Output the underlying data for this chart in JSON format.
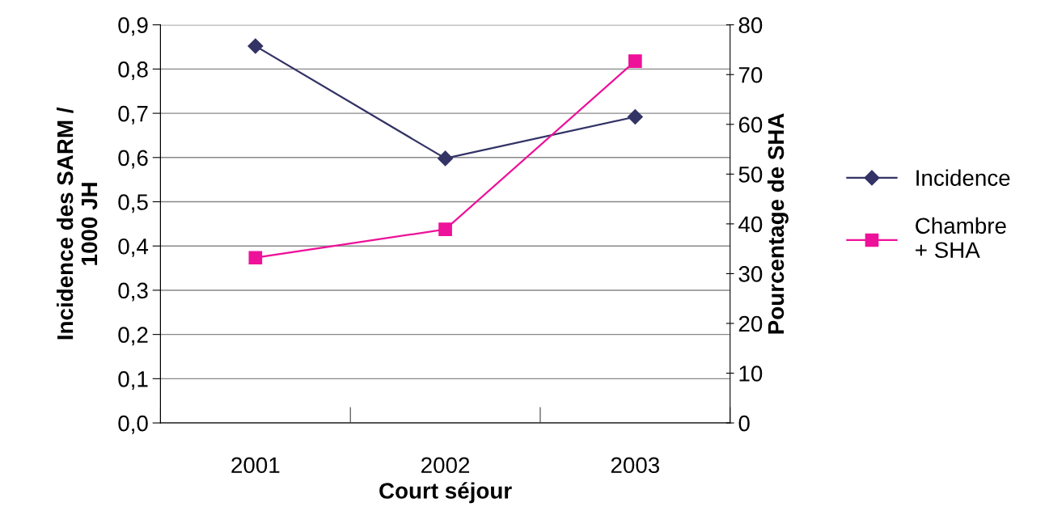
{
  "chart_data": {
    "type": "line",
    "xlabel": "Court séjour",
    "ylabel": "Incidence des SARM /\n1000 JH",
    "y2label": "Pourcentage de SHA",
    "categories": [
      "2001",
      "2002",
      "2003"
    ],
    "series": [
      {
        "name": "Incidence",
        "color": "#333366",
        "values": [
          0.852,
          0.598,
          0.692
        ],
        "marker": "diamond"
      },
      {
        "name": "Chambre\n+ SHA",
        "color": "#ee1199",
        "values": [
          33.2,
          38.9,
          72.7
        ],
        "axis": "y2",
        "marker": "square"
      }
    ],
    "ylim": [
      0,
      0.9
    ],
    "yticks": [
      {
        "value": 0,
        "label": "0,0"
      },
      {
        "value": 0.1,
        "label": "0,1"
      },
      {
        "value": 0.2,
        "label": "0,2"
      },
      {
        "value": 0.3,
        "label": "0,3"
      },
      {
        "value": 0.4,
        "label": "0,4"
      },
      {
        "value": 0.5,
        "label": "0,5"
      },
      {
        "value": 0.6,
        "label": "0,6"
      },
      {
        "value": 0.7,
        "label": "0,7"
      },
      {
        "value": 0.8,
        "label": "0,8"
      },
      {
        "value": 0.9,
        "label": "0,9"
      }
    ],
    "y2lim": [
      0,
      80
    ],
    "y2ticks": [
      0,
      10,
      20,
      30,
      40,
      50,
      60,
      70,
      80
    ],
    "grid": "y",
    "legend": "right",
    "line_style": "solid"
  }
}
